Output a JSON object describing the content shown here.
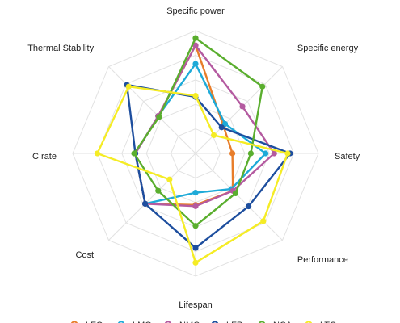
{
  "chart_data": {
    "type": "radar",
    "title": "",
    "axes": [
      "Specific power",
      "Specific energy",
      "Safety",
      "Performance",
      "Lifespan",
      "Cost",
      "C rate",
      "Thermal Stability"
    ],
    "axis_label_display": [
      "Specific power",
      "Specific energy",
      "Safety",
      "Performance",
      "Lifespan",
      "Cost",
      "C rate",
      "Thermal Stability"
    ],
    "range": [
      0,
      10
    ],
    "grid_levels": 5,
    "grid": true,
    "legend": {
      "placement": "bottom"
    },
    "series": [
      {
        "name": "LFO",
        "color": "#e87d2a",
        "values": [
          8.8,
          3.2,
          3.0,
          4.3,
          4.2,
          5.8,
          4.9,
          4.3
        ]
      },
      {
        "name": "LMO",
        "color": "#1eaad8",
        "values": [
          7.3,
          3.4,
          5.7,
          4.1,
          3.2,
          5.8,
          4.9,
          4.3
        ]
      },
      {
        "name": "NMC",
        "color": "#b45aa0",
        "values": [
          8.8,
          5.4,
          6.4,
          4.3,
          4.3,
          5.8,
          4.9,
          4.3
        ]
      },
      {
        "name": "LFP",
        "color": "#1d4e9e",
        "values": [
          4.6,
          3.0,
          7.7,
          6.1,
          7.7,
          5.8,
          4.9,
          7.9
        ]
      },
      {
        "name": "NCA",
        "color": "#5aae2e",
        "values": [
          9.4,
          7.7,
          4.5,
          4.6,
          5.9,
          4.3,
          5.0,
          4.2
        ]
      },
      {
        "name": "LTO",
        "color": "#f5ec25",
        "values": [
          4.7,
          2.1,
          7.5,
          7.8,
          8.9,
          3.0,
          8.0,
          7.7
        ]
      }
    ]
  },
  "legend_display": [
    "LFO",
    "LMO",
    "NMC",
    "LFP",
    "NCA",
    "LTO"
  ]
}
